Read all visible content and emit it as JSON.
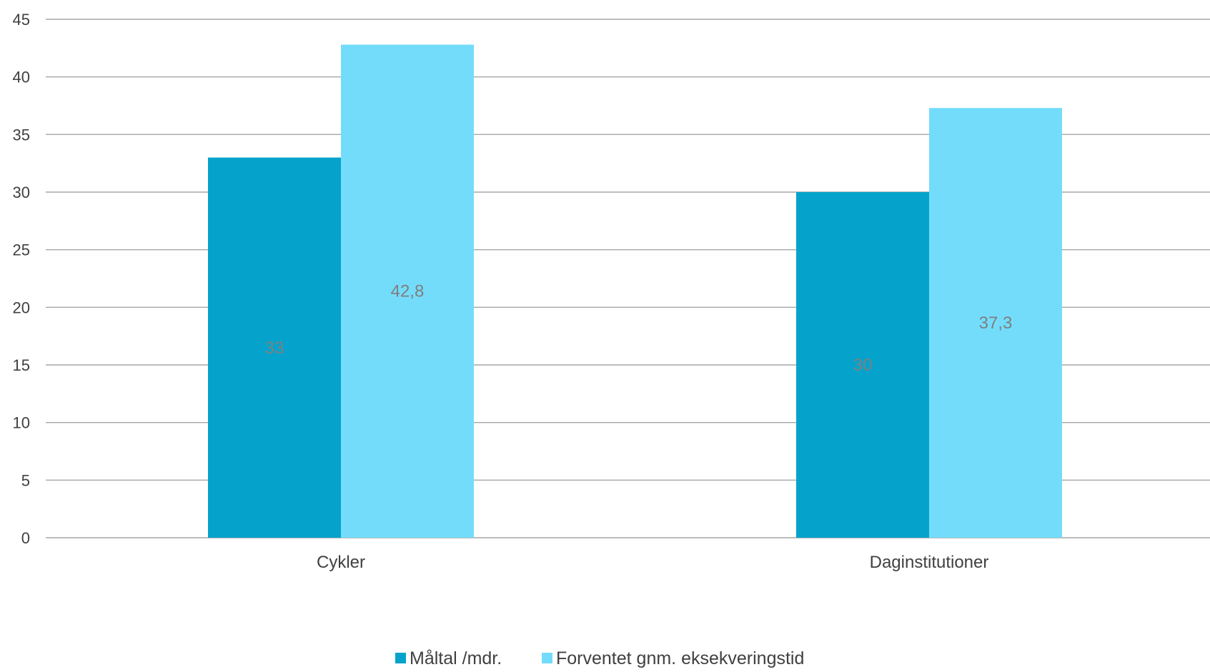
{
  "chart_data": {
    "type": "bar",
    "title": "",
    "xlabel": "",
    "ylabel": "",
    "categories": [
      "Cykler",
      "Daginstitutioner"
    ],
    "series": [
      {
        "name": "Måltal /mdr.",
        "color": "#05a3cc",
        "values": [
          33,
          30
        ],
        "labels": [
          "33",
          "30"
        ]
      },
      {
        "name": "Forventet gnm. eksekveringstid",
        "color": "#74dcfb",
        "values": [
          42.8,
          37.3
        ],
        "labels": [
          "42,8",
          "37,3"
        ]
      }
    ],
    "ylim": [
      0,
      45
    ],
    "yticks": [
      0,
      5,
      10,
      15,
      20,
      25,
      30,
      35,
      40,
      45
    ],
    "grid": true,
    "legend_position": "bottom-center",
    "gridline_color": "#a6a6a6"
  }
}
